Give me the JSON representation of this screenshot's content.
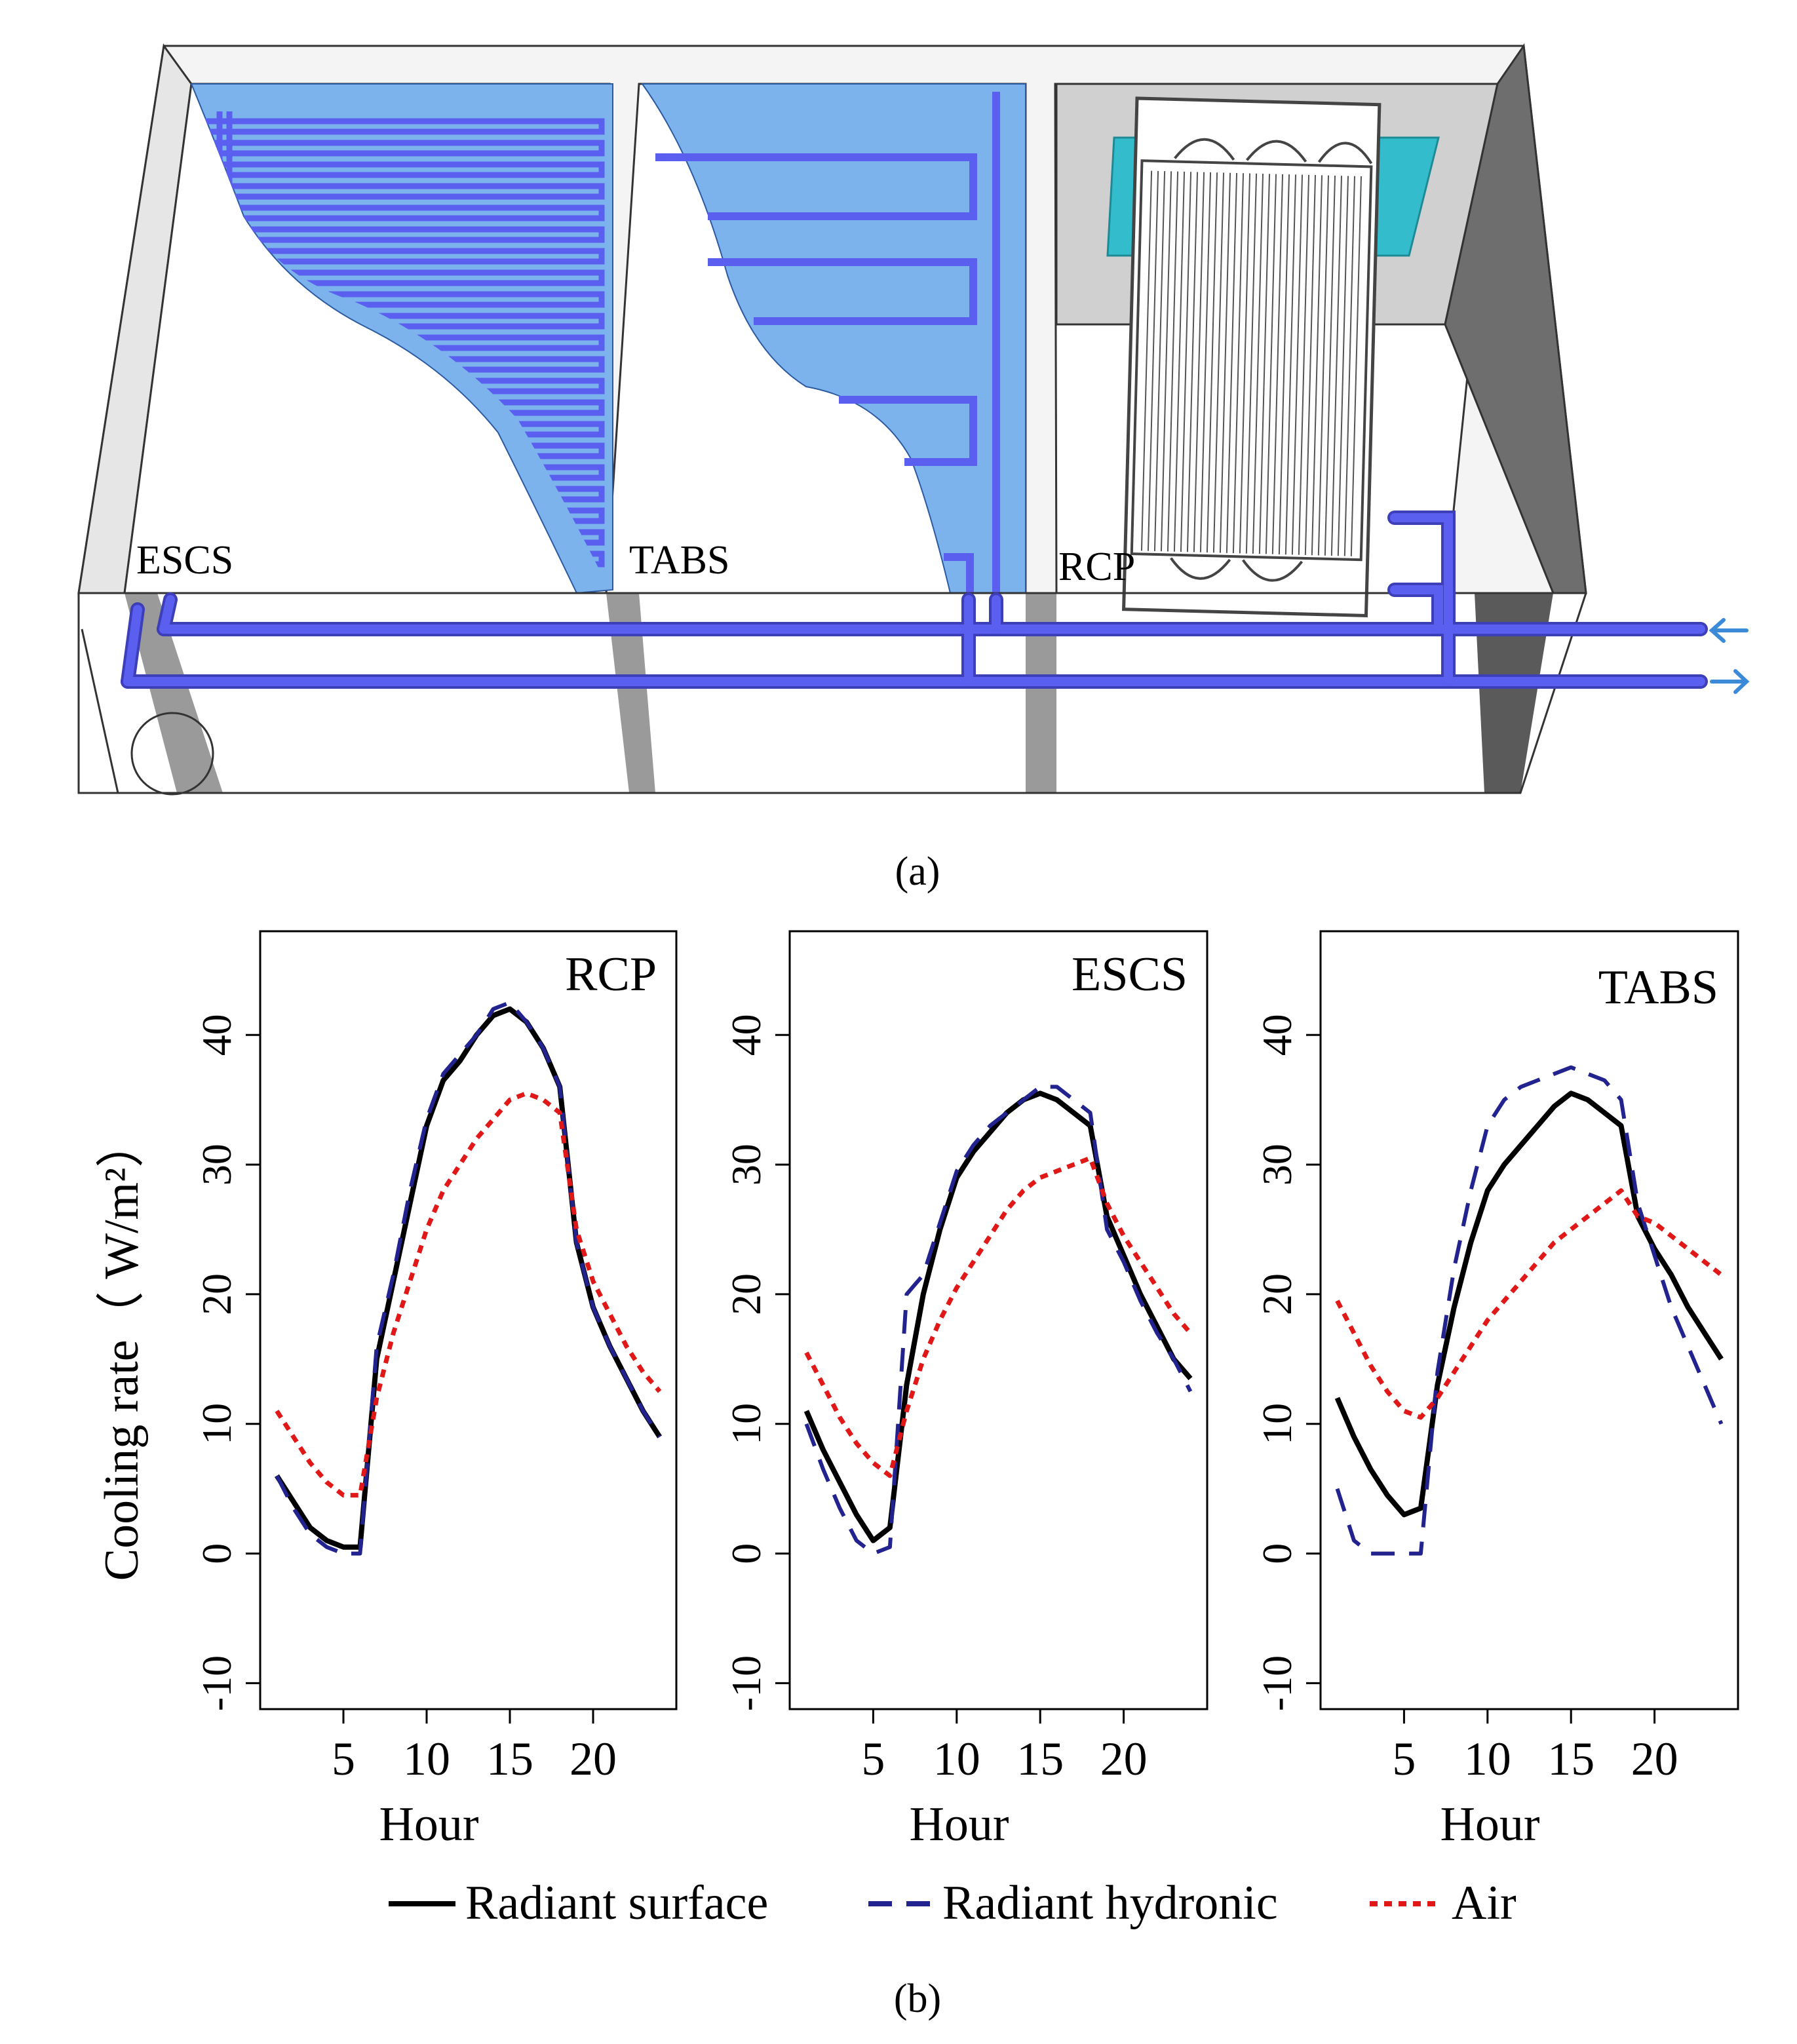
{
  "panel_a": {
    "caption": "(a)",
    "labels": {
      "escs": "ESCS",
      "tabs": "TABS",
      "rcp": "RCP"
    },
    "colors": {
      "pipe": "#5a5ff0",
      "panel_fill": "#7db3ec",
      "rcp_back": "#d0d0d0",
      "lamp": "#33bccc",
      "arrow": "#3a8ad8"
    }
  },
  "panel_b": {
    "caption": "(b)",
    "legend": {
      "surface": "Radiant surface",
      "hydronic": "Radiant hydronic",
      "air": "Air"
    }
  },
  "chart_data": [
    {
      "type": "line",
      "title": "RCP",
      "xlabel": "Hour",
      "ylabel": "Cooling rate（ W/m²）",
      "xlim": [
        0,
        25
      ],
      "ylim": [
        -12,
        48
      ],
      "xticks": [
        "5",
        "10",
        "15",
        "20"
      ],
      "yticks": [
        "-10",
        "0",
        "10",
        "20",
        "30",
        "40"
      ],
      "x": [
        1,
        2,
        3,
        4,
        5,
        6,
        7,
        8,
        9,
        10,
        11,
        12,
        13,
        14,
        15,
        16,
        17,
        18,
        19,
        20,
        21,
        22,
        23,
        24
      ],
      "series": [
        {
          "name": "Radiant surface",
          "values": [
            6,
            4,
            2,
            1,
            0.5,
            0.5,
            15,
            21,
            27,
            33,
            36.5,
            38,
            40,
            41.5,
            42,
            41,
            39,
            36,
            24,
            19,
            16,
            13.5,
            11,
            9
          ]
        },
        {
          "name": "Radiant hydronic",
          "values": [
            6,
            3.5,
            1.5,
            0.5,
            0,
            0,
            16,
            21.5,
            28,
            33.5,
            37,
            38.5,
            40,
            42,
            42.5,
            41,
            39,
            36,
            24,
            19,
            16,
            13.5,
            11,
            9
          ]
        },
        {
          "name": "Air",
          "values": [
            11,
            9,
            7,
            5.5,
            4.5,
            4.5,
            12,
            17,
            21,
            25,
            28,
            30,
            32,
            33.5,
            35,
            35.5,
            35,
            34,
            25,
            21,
            18.5,
            16,
            14,
            12.5
          ]
        }
      ]
    },
    {
      "type": "line",
      "title": "ESCS",
      "xlabel": "Hour",
      "ylabel": "",
      "xlim": [
        0,
        25
      ],
      "ylim": [
        -12,
        48
      ],
      "xticks": [
        "5",
        "10",
        "15",
        "20"
      ],
      "yticks": [
        "-10",
        "0",
        "10",
        "20",
        "30",
        "40"
      ],
      "x": [
        1,
        2,
        3,
        4,
        5,
        6,
        7,
        8,
        9,
        10,
        11,
        12,
        13,
        14,
        15,
        16,
        17,
        18,
        19,
        20,
        21,
        22,
        23,
        24
      ],
      "series": [
        {
          "name": "Radiant surface",
          "values": [
            11,
            8,
            5.5,
            3,
            1,
            2,
            13,
            20,
            25,
            29,
            31,
            32.5,
            34,
            35,
            35.5,
            35,
            34,
            33,
            26,
            23,
            20,
            17.5,
            15,
            13.5
          ]
        },
        {
          "name": "Radiant hydronic",
          "values": [
            10,
            6.5,
            3.5,
            1,
            0,
            0.5,
            20,
            21.5,
            25.5,
            29.5,
            31.5,
            33,
            34,
            35,
            36,
            36,
            35,
            34,
            25,
            22.5,
            19.5,
            17,
            15,
            12.5
          ]
        },
        {
          "name": "Air",
          "values": [
            15.5,
            13,
            10.5,
            8.5,
            7,
            6,
            11,
            15,
            18,
            20.5,
            22.5,
            24.5,
            26.5,
            28,
            29,
            29.5,
            30,
            30.5,
            27,
            24.5,
            22.5,
            20.5,
            18.5,
            17
          ]
        }
      ]
    },
    {
      "type": "line",
      "title": "TABS",
      "xlabel": "Hour",
      "ylabel": "",
      "xlim": [
        0,
        25
      ],
      "ylim": [
        -12,
        48
      ],
      "xticks": [
        "5",
        "10",
        "15",
        "20"
      ],
      "yticks": [
        "-10",
        "0",
        "10",
        "20",
        "30",
        "40"
      ],
      "x": [
        1,
        2,
        3,
        4,
        5,
        6,
        7,
        8,
        9,
        10,
        11,
        12,
        13,
        14,
        15,
        16,
        17,
        18,
        19,
        20,
        21,
        22,
        23,
        24
      ],
      "series": [
        {
          "name": "Radiant surface",
          "values": [
            12,
            9,
            6.5,
            4.5,
            3,
            3.5,
            13,
            19,
            24,
            28,
            30,
            31.5,
            33,
            34.5,
            35.5,
            35,
            34,
            33,
            26,
            23.5,
            21.5,
            19,
            17,
            15
          ]
        },
        {
          "name": "Radiant hydronic",
          "values": [
            5,
            1,
            0,
            0,
            0,
            0,
            14,
            22,
            28,
            33,
            35,
            36,
            36.5,
            37,
            37.5,
            37,
            36.5,
            35,
            27,
            23,
            19,
            16,
            13,
            10
          ]
        },
        {
          "name": "Air",
          "values": [
            19.5,
            17,
            14.5,
            12.5,
            11,
            10.5,
            12,
            14,
            16,
            18,
            19.5,
            21,
            22.5,
            24,
            25,
            26,
            27,
            28,
            26,
            25.5,
            24.5,
            23.5,
            22.5,
            21.5
          ]
        }
      ]
    }
  ]
}
